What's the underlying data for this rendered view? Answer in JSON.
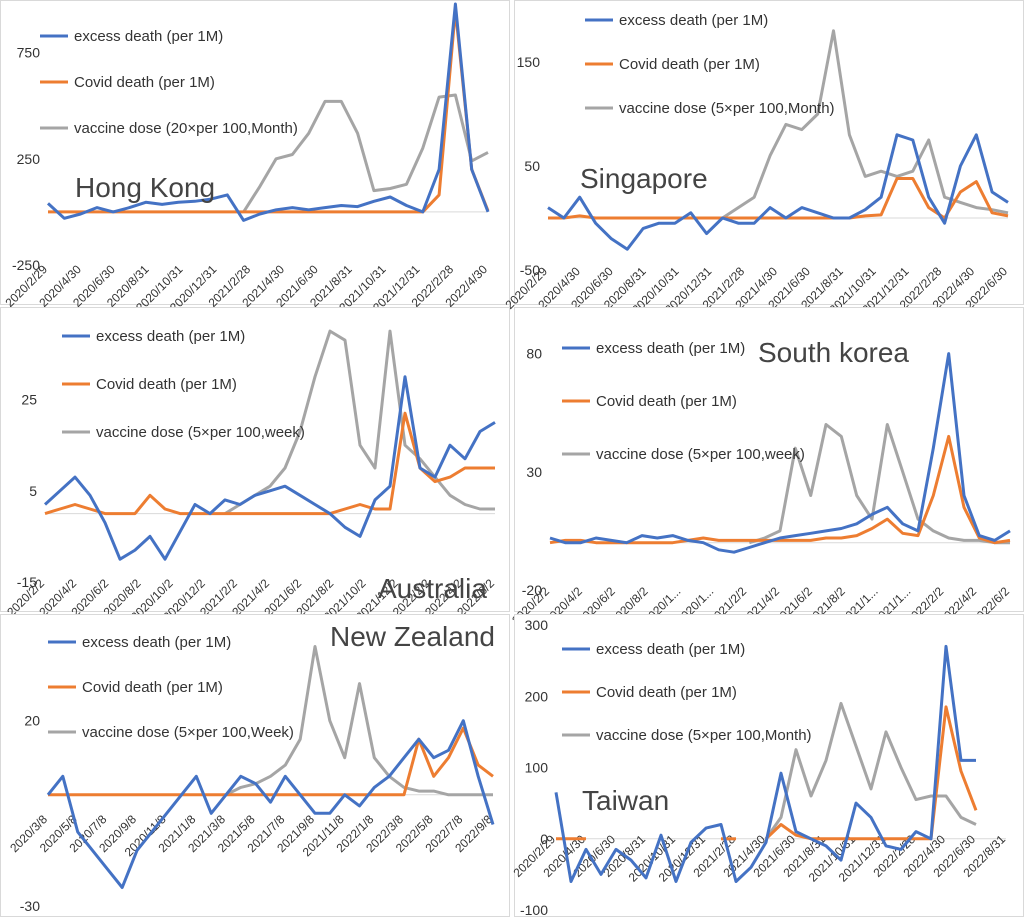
{
  "colors": {
    "excess": "#4472C4",
    "covid": "#ED7D31",
    "vaccine": "#A5A5A5",
    "panel_border": "#D9D9D9",
    "red_label": "#C00000"
  },
  "chart_data": [
    {
      "type": "line",
      "title": "Hong Kong",
      "yticks": [
        "750",
        "250",
        "-250"
      ],
      "ylim": [
        -250,
        950
      ],
      "xtick_labels": [
        "2020/2/29",
        "2020/4/30",
        "2020/6/30",
        "2020/8/31",
        "2020/10/31",
        "2020/12/31",
        "2021/2/28",
        "2021/4/30",
        "2021/6/30",
        "2021/8/31",
        "2021/10/31",
        "2021/12/31",
        "2022/2/28",
        "2022/4/30"
      ],
      "x": [
        "2020/2/29",
        "2020/3/31",
        "2020/4/30",
        "2020/5/31",
        "2020/6/30",
        "2020/7/31",
        "2020/8/31",
        "2020/9/30",
        "2020/10/31",
        "2020/11/30",
        "2020/12/31",
        "2021/1/31",
        "2021/2/28",
        "2021/3/31",
        "2021/4/30",
        "2021/5/31",
        "2021/6/30",
        "2021/7/31",
        "2021/8/31",
        "2021/9/30",
        "2021/10/31",
        "2021/11/30",
        "2021/12/31",
        "2022/1/31",
        "2022/2/28",
        "2022/3/31",
        "2022/4/30",
        "2022/5/31"
      ],
      "series": [
        {
          "name": "excess death (per 1M)",
          "values": [
            40,
            -30,
            -10,
            20,
            0,
            20,
            45,
            35,
            45,
            50,
            60,
            80,
            -40,
            -10,
            10,
            20,
            10,
            20,
            30,
            25,
            50,
            70,
            30,
            0,
            200,
            1000,
            200,
            0
          ]
        },
        {
          "name": "Covid death (per 1M)",
          "values": [
            0,
            0,
            0,
            0,
            0,
            0,
            0,
            0,
            0,
            0,
            0,
            0,
            0,
            0,
            0,
            0,
            0,
            0,
            0,
            0,
            0,
            0,
            0,
            0,
            80,
            950,
            200,
            5
          ]
        },
        {
          "name": "vaccine dose (20×per 100,Month)",
          "values": [
            null,
            null,
            null,
            null,
            null,
            null,
            null,
            null,
            null,
            null,
            null,
            null,
            0,
            120,
            250,
            270,
            370,
            520,
            520,
            370,
            100,
            110,
            130,
            300,
            540,
            550,
            240,
            280
          ]
        }
      ]
    },
    {
      "type": "line",
      "title": "Singapore",
      "yticks": [
        "150",
        "50",
        "-50"
      ],
      "ylim": [
        -50,
        200
      ],
      "xtick_labels": [
        "2020/2/29",
        "2020/4/30",
        "2020/6/30",
        "2020/8/31",
        "2020/10/31",
        "2020/12/31",
        "2021/2/28",
        "2021/4/30",
        "2021/6/30",
        "2021/8/31",
        "2021/10/31",
        "2021/12/31",
        "2022/2/28",
        "2022/4/30",
        "2022/6/30"
      ],
      "x": [
        "2020/2/29",
        "2020/3/31",
        "2020/4/30",
        "2020/5/31",
        "2020/6/30",
        "2020/7/31",
        "2020/8/31",
        "2020/9/30",
        "2020/10/31",
        "2020/11/30",
        "2020/12/31",
        "2021/1/31",
        "2021/2/28",
        "2021/3/31",
        "2021/4/30",
        "2021/5/31",
        "2021/6/30",
        "2021/7/31",
        "2021/8/31",
        "2021/9/30",
        "2021/10/31",
        "2021/11/30",
        "2021/12/31",
        "2022/1/31",
        "2022/2/28",
        "2022/3/31",
        "2022/4/30",
        "2022/5/31",
        "2022/6/30",
        "2022/7/31"
      ],
      "series": [
        {
          "name": "excess death (per 1M)",
          "values": [
            10,
            0,
            20,
            -5,
            -20,
            -30,
            -10,
            -5,
            -5,
            5,
            -15,
            0,
            -5,
            -5,
            10,
            0,
            10,
            5,
            0,
            0,
            8,
            20,
            80,
            75,
            20,
            -5,
            50,
            80,
            25,
            15
          ]
        },
        {
          "name": "Covid death (per 1M)",
          "values": [
            0,
            0,
            2,
            0,
            0,
            0,
            0,
            0,
            0,
            0,
            0,
            0,
            0,
            0,
            0,
            0,
            0,
            0,
            0,
            0,
            2,
            3,
            38,
            38,
            10,
            0,
            25,
            35,
            5,
            2
          ]
        },
        {
          "name": "vaccine dose (5×per 100,Month)",
          "values": [
            null,
            null,
            null,
            null,
            null,
            null,
            null,
            null,
            null,
            null,
            null,
            0,
            10,
            20,
            60,
            90,
            85,
            100,
            180,
            80,
            40,
            45,
            40,
            45,
            75,
            20,
            15,
            10,
            8,
            5
          ]
        }
      ]
    },
    {
      "type": "line",
      "title": "Australia",
      "yticks": [
        "25",
        "5",
        "-15"
      ],
      "ylim": [
        -15,
        42
      ],
      "xtick_labels": [
        "2020/2/2",
        "2020/4/2",
        "2020/6/2",
        "2020/8/2",
        "2020/10/2",
        "2020/12/2",
        "2021/2/2",
        "2021/4/2",
        "2021/6/2",
        "2021/8/2",
        "2021/10/2",
        "2021/12/2",
        "2022/2/2",
        "2022/4/2",
        "2022/6/2"
      ],
      "x": [
        "2020/2/2",
        "2020/3/2",
        "2020/4/2",
        "2020/5/2",
        "2020/6/2",
        "2020/7/2",
        "2020/8/2",
        "2020/9/2",
        "2020/10/2",
        "2020/11/2",
        "2020/12/2",
        "2021/1/2",
        "2021/2/2",
        "2021/3/2",
        "2021/4/2",
        "2021/5/2",
        "2021/6/2",
        "2021/7/2",
        "2021/8/2",
        "2021/9/2",
        "2021/10/2",
        "2021/11/2",
        "2021/12/2",
        "2022/1/2",
        "2022/2/2",
        "2022/3/2",
        "2022/4/2",
        "2022/5/2",
        "2022/6/2",
        "2022/7/2",
        "2022/8/2"
      ],
      "series": [
        {
          "name": "excess death (per 1M)",
          "values": [
            2,
            5,
            8,
            4,
            -2,
            -10,
            -8,
            -5,
            -10,
            -4,
            2,
            0,
            3,
            2,
            4,
            5,
            6,
            4,
            2,
            0,
            -3,
            -5,
            3,
            6,
            30,
            10,
            8,
            15,
            12,
            18,
            20
          ]
        },
        {
          "name": "Covid death (per 1M)",
          "values": [
            0,
            1,
            2,
            1,
            0,
            0,
            0,
            4,
            1,
            0,
            0,
            0,
            0,
            0,
            0,
            0,
            0,
            0,
            0,
            0,
            1,
            2,
            1,
            1,
            22,
            10,
            7,
            8,
            10,
            10,
            10
          ]
        },
        {
          "name": "vaccine dose (5×per 100,week)",
          "values": [
            null,
            null,
            null,
            null,
            null,
            null,
            null,
            null,
            null,
            null,
            null,
            null,
            0,
            2,
            4,
            6,
            10,
            18,
            30,
            40,
            38,
            15,
            10,
            40,
            15,
            12,
            8,
            4,
            2,
            1,
            1
          ]
        }
      ]
    },
    {
      "type": "line",
      "title": "South korea",
      "yticks": [
        "80",
        "30",
        "-20"
      ],
      "ylim": [
        -20,
        90
      ],
      "xtick_labels": [
        "2020/2/2",
        "2020/4/2",
        "2020/6/2",
        "2020/8/2",
        "2020/1...",
        "2020/1...",
        "2021/2/2",
        "2021/4/2",
        "2021/6/2",
        "2021/8/2",
        "2021/1...",
        "2021/1...",
        "2022/2/2",
        "2022/4/2",
        "2022/6/2"
      ],
      "x": [
        "2020/2/2",
        "2020/3/2",
        "2020/4/2",
        "2020/5/2",
        "2020/6/2",
        "2020/7/2",
        "2020/8/2",
        "2020/9/2",
        "2020/10/2",
        "2020/11/2",
        "2020/12/2",
        "2021/1/2",
        "2021/2/2",
        "2021/3/2",
        "2021/4/2",
        "2021/5/2",
        "2021/6/2",
        "2021/7/2",
        "2021/8/2",
        "2021/9/2",
        "2021/10/2",
        "2021/11/2",
        "2021/12/2",
        "2022/1/2",
        "2022/2/2",
        "2022/3/2",
        "2022/4/2",
        "2022/5/2",
        "2022/6/2",
        "2022/7/2",
        "2022/8/2"
      ],
      "series": [
        {
          "name": "excess death (per 1M)",
          "values": [
            2,
            0,
            0,
            2,
            1,
            0,
            3,
            2,
            3,
            1,
            0,
            -3,
            -4,
            -2,
            0,
            2,
            3,
            4,
            5,
            6,
            8,
            12,
            15,
            8,
            5,
            40,
            80,
            20,
            3,
            1,
            5
          ]
        },
        {
          "name": "Covid death (per 1M)",
          "values": [
            0,
            1,
            1,
            0,
            0,
            0,
            0,
            0,
            0,
            1,
            2,
            1,
            1,
            1,
            1,
            1,
            1,
            1,
            2,
            2,
            3,
            6,
            10,
            4,
            3,
            20,
            45,
            15,
            2,
            0,
            1
          ]
        },
        {
          "name": "vaccine dose (5×per 100,week)",
          "values": [
            null,
            null,
            null,
            null,
            null,
            null,
            null,
            null,
            null,
            null,
            null,
            null,
            null,
            0,
            2,
            5,
            40,
            20,
            50,
            45,
            20,
            10,
            50,
            30,
            10,
            5,
            2,
            1,
            1,
            0,
            0
          ]
        }
      ]
    },
    {
      "type": "line",
      "title": "New Zealand",
      "yticks": [
        "20",
        "-30"
      ],
      "ylim": [
        -30,
        45
      ],
      "xtick_labels": [
        "2020/3/8",
        "2020/5/8",
        "2020/7/8",
        "2020/9/8",
        "2020/11/8",
        "2021/1/8",
        "2021/3/8",
        "2021/5/8",
        "2021/7/8",
        "2021/9/8",
        "2021/11/8",
        "2022/1/8",
        "2022/3/8",
        "2022/5/8",
        "2022/7/8",
        "2022/9/8"
      ],
      "x": [
        "2020/3/8",
        "2020/4/8",
        "2020/5/8",
        "2020/6/8",
        "2020/7/8",
        "2020/8/8",
        "2020/9/8",
        "2020/10/8",
        "2020/11/8",
        "2020/12/8",
        "2021/1/8",
        "2021/2/8",
        "2021/3/8",
        "2021/4/8",
        "2021/5/8",
        "2021/6/8",
        "2021/7/8",
        "2021/8/8",
        "2021/9/8",
        "2021/10/8",
        "2021/11/8",
        "2021/12/8",
        "2022/1/8",
        "2022/2/8",
        "2022/3/8",
        "2022/4/8",
        "2022/5/8",
        "2022/6/8",
        "2022/7/8",
        "2022/8/8",
        "2022/9/8"
      ],
      "series": [
        {
          "name": "excess death (per 1M)",
          "values": [
            0,
            5,
            -10,
            -15,
            -20,
            -25,
            -15,
            -10,
            -5,
            0,
            5,
            -5,
            0,
            5,
            3,
            -2,
            5,
            0,
            -5,
            -5,
            0,
            -3,
            2,
            5,
            10,
            15,
            10,
            12,
            20,
            5,
            -8
          ]
        },
        {
          "name": "Covid death (per 1M)",
          "values": [
            0,
            0,
            0,
            0,
            0,
            0,
            0,
            0,
            0,
            0,
            0,
            0,
            0,
            0,
            0,
            0,
            0,
            0,
            0,
            0,
            0,
            0,
            0,
            0,
            0,
            15,
            5,
            10,
            18,
            8,
            5
          ]
        },
        {
          "name": "vaccine dose (5×per 100,Week)",
          "values": [
            null,
            null,
            null,
            null,
            null,
            null,
            null,
            null,
            null,
            null,
            null,
            null,
            0,
            2,
            3,
            5,
            8,
            15,
            40,
            20,
            10,
            30,
            10,
            5,
            2,
            1,
            1,
            0,
            0,
            0,
            0
          ]
        }
      ]
    },
    {
      "type": "line",
      "title": "Taiwan",
      "yticks": [
        "300",
        "200",
        "100",
        "0",
        "-100"
      ],
      "ylim": [
        -100,
        300
      ],
      "xtick_labels": [
        "2020/2/29",
        "2020/4/30",
        "2020/6/30",
        "2020/8/31",
        "2020/10/31",
        "2020/12/31",
        "2021/2/28",
        "2021/4/30",
        "2021/6/30",
        "2021/8/31",
        "2021/10/31",
        "2021/12/31",
        "2022/2/28",
        "2022/4/30",
        "2022/6/30",
        "2022/8/31"
      ],
      "x": [
        "2020/2/29",
        "2020/3/31",
        "2020/4/30",
        "2020/5/31",
        "2020/6/30",
        "2020/7/31",
        "2020/8/31",
        "2020/9/30",
        "2020/10/31",
        "2020/11/30",
        "2020/12/31",
        "2021/1/31",
        "2021/2/28",
        "2021/3/31",
        "2021/4/30",
        "2021/5/31",
        "2021/6/30",
        "2021/7/31",
        "2021/8/31",
        "2021/9/30",
        "2021/10/31",
        "2021/11/30",
        "2021/12/31",
        "2022/1/31",
        "2022/2/28",
        "2022/3/31",
        "2022/4/30",
        "2022/5/31",
        "2022/6/30",
        "2022/7/31",
        "2022/8/31"
      ],
      "series": [
        {
          "name": "excess death (per 1M)",
          "values": [
            65,
            -60,
            -15,
            -50,
            -15,
            -30,
            -55,
            5,
            -60,
            -5,
            15,
            20,
            -60,
            -40,
            -5,
            92,
            10,
            0,
            -10,
            -30,
            50,
            30,
            -10,
            -15,
            10,
            0,
            270,
            110,
            110,
            null,
            null
          ]
        },
        {
          "name": "Covid death (per 1M)",
          "values": [
            0,
            0,
            0,
            null,
            null,
            null,
            null,
            null,
            null,
            null,
            null,
            0,
            0,
            null,
            0,
            20,
            5,
            0,
            0,
            0,
            0,
            0,
            0,
            0,
            0,
            0,
            185,
            95,
            40,
            null,
            null
          ]
        },
        {
          "name": "vaccine dose (5×per 100,Month)",
          "values": [
            null,
            null,
            null,
            null,
            null,
            null,
            null,
            null,
            null,
            null,
            null,
            null,
            null,
            null,
            0,
            30,
            125,
            60,
            110,
            190,
            130,
            70,
            150,
            100,
            55,
            60,
            60,
            30,
            20,
            null,
            null
          ]
        }
      ]
    }
  ]
}
